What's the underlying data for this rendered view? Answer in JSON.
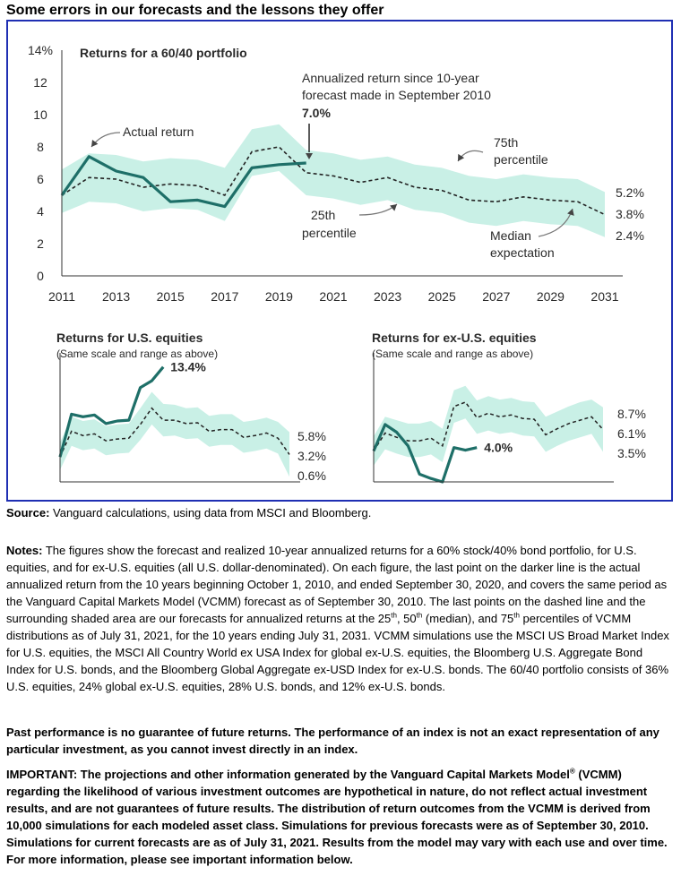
{
  "title": "Some errors in our forecasts and the lessons they offer",
  "colors": {
    "frame": "#1f2fb3",
    "actual": "#1e6f68",
    "band": "#c9f0e6",
    "median": "#222222",
    "text": "#2a2a2a"
  },
  "chart_data": [
    {
      "type": "line",
      "title": "Returns for a 60/40 portfolio",
      "y_ticks": [
        "0",
        "2",
        "4",
        "6",
        "8",
        "10",
        "12",
        "14%"
      ],
      "ylim": [
        0,
        14
      ],
      "x_ticks": [
        "2011",
        "2013",
        "2015",
        "2017",
        "2019",
        "2021",
        "2023",
        "2025",
        "2027",
        "2029",
        "2031"
      ],
      "xlim": [
        2011,
        2031
      ],
      "grid": false,
      "series": [
        {
          "name": "Actual return",
          "style": "solid",
          "x": [
            2011,
            2012,
            2013,
            2014,
            2015,
            2016,
            2017,
            2018,
            2019,
            2020
          ],
          "y": [
            5.0,
            7.4,
            6.5,
            6.1,
            4.6,
            4.7,
            4.3,
            6.7,
            6.9,
            7.0
          ]
        },
        {
          "name": "Median expectation",
          "style": "dashed",
          "x": [
            2011,
            2012,
            2013,
            2014,
            2015,
            2016,
            2017,
            2018,
            2019,
            2020,
            2021,
            2022,
            2023,
            2024,
            2025,
            2026,
            2027,
            2028,
            2029,
            2030,
            2031
          ],
          "y": [
            5.0,
            6.1,
            6.0,
            5.5,
            5.7,
            5.6,
            5.0,
            7.7,
            8.0,
            6.4,
            6.2,
            5.8,
            6.1,
            5.5,
            5.3,
            4.7,
            4.6,
            4.9,
            4.7,
            4.6,
            3.8
          ]
        },
        {
          "name": "75th percentile",
          "style": "band-upper",
          "x": [
            2011,
            2012,
            2013,
            2014,
            2015,
            2016,
            2017,
            2018,
            2019,
            2020,
            2021,
            2022,
            2023,
            2024,
            2025,
            2026,
            2027,
            2028,
            2029,
            2030,
            2031
          ],
          "y": [
            6.6,
            7.6,
            7.5,
            7.1,
            7.3,
            7.2,
            6.7,
            9.1,
            9.4,
            7.8,
            7.6,
            7.2,
            7.4,
            6.9,
            6.7,
            6.2,
            6.0,
            6.3,
            6.1,
            6.0,
            5.2
          ]
        },
        {
          "name": "25th percentile",
          "style": "band-lower",
          "x": [
            2011,
            2012,
            2013,
            2014,
            2015,
            2016,
            2017,
            2018,
            2019,
            2020,
            2021,
            2022,
            2023,
            2024,
            2025,
            2026,
            2027,
            2028,
            2029,
            2030,
            2031
          ],
          "y": [
            3.9,
            4.6,
            4.5,
            4.0,
            4.2,
            4.1,
            3.4,
            6.2,
            6.5,
            5.0,
            4.8,
            4.4,
            4.7,
            4.1,
            3.9,
            3.3,
            3.1,
            3.4,
            3.2,
            3.1,
            2.4
          ]
        }
      ],
      "annotations": {
        "actual": "Actual return",
        "annualized_line1": "Annualized return since 10-year",
        "annualized_line2": "forecast made in September 2010",
        "annualized_value": "7.0%",
        "p75_line1": "75th",
        "p75_line2": "percentile",
        "p25_line1": "25th",
        "p25_line2": "percentile",
        "median_line1": "Median",
        "median_line2": "expectation",
        "end_labels": [
          "5.2%",
          "3.8%",
          "2.4%"
        ]
      }
    },
    {
      "type": "line",
      "title": "Returns for U.S. equities",
      "subtitle": "(Same scale and range as above)",
      "ylim": [
        0,
        14
      ],
      "series": [
        {
          "style": "solid",
          "y": [
            2.9,
            7.9,
            7.6,
            7.8,
            6.8,
            7.1,
            7.2,
            11.0,
            11.8,
            13.4
          ]
        },
        {
          "style": "dashed",
          "y": [
            2.9,
            5.9,
            5.4,
            5.6,
            4.8,
            5.0,
            5.1,
            6.7,
            8.6,
            7.2,
            7.2,
            6.8,
            6.9,
            5.9,
            6.1,
            6.1,
            5.2,
            5.4,
            5.7,
            5.1,
            3.2
          ]
        },
        {
          "style": "band-upper",
          "y": [
            4.6,
            7.6,
            7.1,
            7.3,
            6.5,
            6.7,
            6.8,
            8.6,
            10.5,
            9.1,
            9.0,
            8.6,
            8.7,
            7.7,
            7.9,
            7.9,
            7.0,
            7.2,
            7.5,
            7.0,
            5.8
          ]
        },
        {
          "style": "band-lower",
          "y": [
            1.4,
            4.2,
            3.7,
            3.9,
            3.1,
            3.3,
            3.4,
            4.9,
            6.7,
            5.3,
            5.4,
            5.0,
            5.1,
            4.1,
            4.3,
            4.3,
            3.4,
            3.6,
            3.9,
            3.3,
            0.6
          ]
        }
      ],
      "annotations": {
        "actual_end": "13.4%",
        "end_labels": [
          "5.8%",
          "3.2%",
          "0.6%"
        ]
      }
    },
    {
      "type": "line",
      "title": "Returns for ex-U.S. equities",
      "subtitle": "(Same scale and range as above)",
      "ylim": [
        0,
        14
      ],
      "series": [
        {
          "style": "solid",
          "y": [
            3.6,
            6.7,
            5.8,
            4.2,
            0.9,
            0.4,
            0.0,
            4.0,
            3.7,
            4.0
          ]
        },
        {
          "style": "dashed",
          "y": [
            3.6,
            5.7,
            5.2,
            4.8,
            4.8,
            5.1,
            4.2,
            8.8,
            9.3,
            7.5,
            8.0,
            7.6,
            7.8,
            7.4,
            7.3,
            5.5,
            6.2,
            6.8,
            7.2,
            7.6,
            6.1
          ]
        },
        {
          "style": "band-upper",
          "y": [
            5.3,
            7.6,
            7.2,
            6.8,
            6.8,
            7.1,
            6.2,
            10.7,
            11.2,
            9.5,
            10.0,
            9.6,
            9.8,
            9.4,
            9.3,
            7.6,
            8.2,
            8.8,
            9.3,
            9.6,
            8.7
          ]
        },
        {
          "style": "band-lower",
          "y": [
            1.9,
            3.8,
            3.3,
            2.9,
            2.9,
            3.2,
            2.3,
            6.9,
            7.4,
            5.6,
            6.0,
            5.6,
            5.8,
            5.4,
            5.3,
            3.5,
            4.2,
            4.8,
            5.2,
            5.6,
            3.5
          ]
        }
      ],
      "annotations": {
        "actual_end": "4.0%",
        "end_labels": [
          "8.7%",
          "6.1%",
          "3.5%"
        ]
      }
    }
  ],
  "source_label": "Source:",
  "source_text": " Vanguard calculations, using data from MSCI and Bloomberg.",
  "notes_label": "Notes:",
  "notes_part1": " The figures show the forecast and realized 10-year annualized returns for a 60% stock/40% bond portfolio, for U.S. equities, and for ex-U.S. equities (all U.S. dollar-denominated). On each figure, the last point on the darker line is the actual annualized return from the 10 years beginning October 1, 2010, and ended September 30, 2020, and covers the same period as the Vanguard Capital Markets Model (VCMM) forecast as of September 30, 2010. The last points on the dashed line and the surrounding shaded area are our forecasts for annualized returns at the 25",
  "notes_sup1": "th",
  "notes_part2": ", 50",
  "notes_sup2": "th",
  "notes_part3": " (median), and 75",
  "notes_sup3": "th",
  "notes_part4": " percentiles of VCMM distributions as of July 31, 2021, for the 10 years ending July 31, 2031. VCMM simulations use the MSCI US Broad Market Index for U.S. equities, the MSCI All Country World ex USA Index for global ex-U.S. equities, the Bloomberg U.S. Aggregate Bond Index for U.S. bonds, and the Bloomberg Global Aggregate ex-USD Index for ex-U.S. bonds. The 60/40 portfolio consists of 36% U.S. equities, 24% global ex-U.S. equities, 28% U.S. bonds, and 12% ex-U.S. bonds.",
  "past_performance": "Past performance is no guarantee of future returns. The performance of an index is not an exact representation of any particular investment, as you cannot invest directly in an index.",
  "important_part1": "IMPORTANT: The projections and other information generated by the Vanguard Capital Markets Model",
  "important_sup": "®",
  "important_part2": " (VCMM) regarding the likelihood of various investment outcomes are hypothetical in nature, do not reflect actual investment results, and are not guarantees of future results. The distribution of return outcomes from the VCMM is derived from 10,000 simulations for each modeled asset class. Simulations for previous forecasts were as of September 30, 2010. Simulations for current forecasts are as of July 31, 2021. Results from the model may vary with each use and over time. For more information, please see important information below."
}
